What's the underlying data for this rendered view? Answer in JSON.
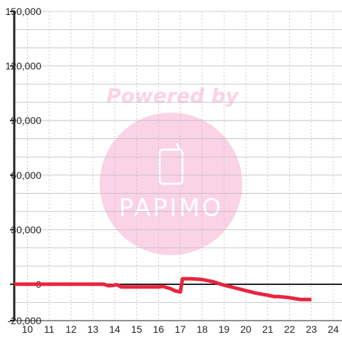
{
  "watermark": {
    "caption": "Powered by",
    "brand": "PAPIMO"
  },
  "chart_data": {
    "type": "line",
    "title": "",
    "xlabel": "",
    "ylabel": "",
    "xlim": [
      9.4,
      24.4
    ],
    "ylim": [
      -20000,
      150000
    ],
    "x_ticks": [
      10,
      11,
      12,
      13,
      14,
      15,
      16,
      17,
      18,
      19,
      20,
      21,
      22,
      23,
      24
    ],
    "y_ticks": [
      150000,
      120000,
      90000,
      60000,
      30000,
      0,
      -20000
    ],
    "x_tick_labels": [
      "10",
      "11",
      "12",
      "13",
      "14",
      "15",
      "16",
      "17",
      "18",
      "19",
      "20",
      "21",
      "22",
      "23",
      "24"
    ],
    "y_tick_labels": [
      "150,000",
      "120,000",
      "90,000",
      "60,000",
      "30,000",
      "0",
      "-20,000"
    ],
    "grid": true,
    "colors": {
      "series": "#e8253f",
      "axis": "#222222",
      "grid": "#bbbbbb",
      "watermark": "#fbd3e6"
    },
    "series": [
      {
        "x": [
          9.4,
          10,
          11,
          12,
          13,
          13.5,
          13.7,
          13.9,
          14.1,
          14.3,
          15,
          16,
          16.2,
          16.5,
          16.8,
          17,
          17.1,
          17.5,
          18,
          18.5,
          19,
          19.5,
          20,
          20.5,
          21,
          21.3,
          21.5,
          22,
          22.5,
          23
        ],
        "y": [
          0,
          0,
          0,
          0,
          0,
          0,
          -800,
          -700,
          -200,
          -1500,
          -1500,
          -1500,
          -1200,
          -2200,
          -3800,
          -4200,
          3000,
          3000,
          2600,
          1400,
          -500,
          -2000,
          -3500,
          -5000,
          -6000,
          -6800,
          -6800,
          -7400,
          -8400,
          -8400
        ]
      }
    ]
  }
}
